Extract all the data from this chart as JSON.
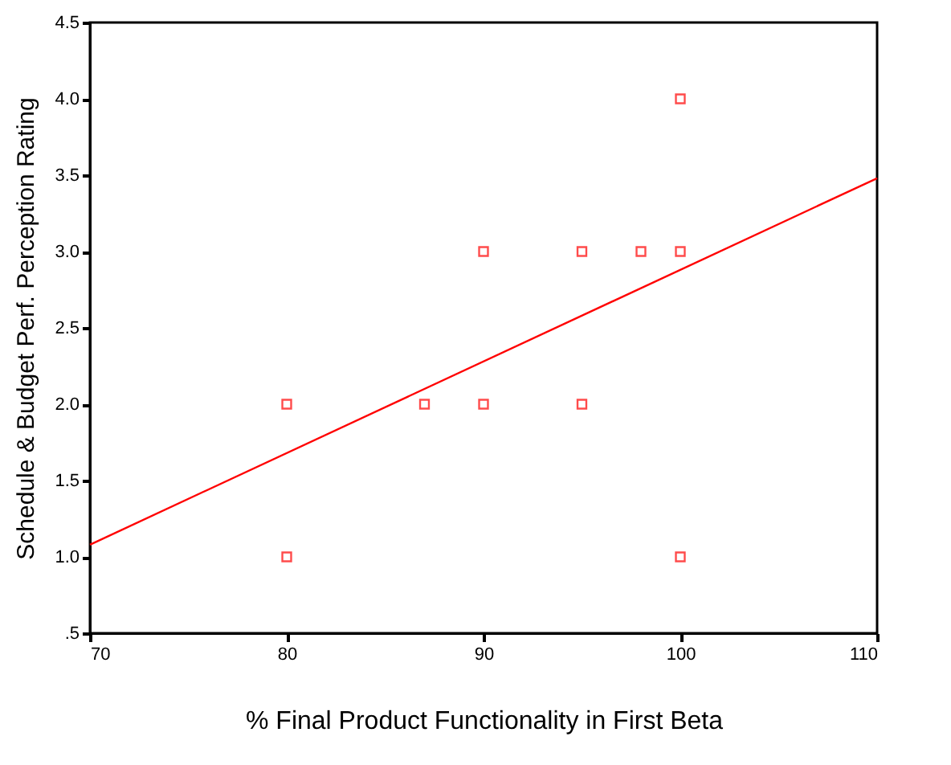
{
  "chart_data": {
    "type": "scatter",
    "xlabel": "% Final Product Functionality in First Beta",
    "ylabel": "Schedule & Budget Perf. Perception Rating",
    "series": [
      {
        "color": "#ff0000",
        "marker": "square",
        "x": [
          80,
          80,
          87,
          90,
          90,
          95,
          95,
          98,
          100,
          100,
          100
        ],
        "values": [
          2,
          1,
          2,
          3,
          2,
          3,
          2,
          3,
          3,
          4,
          1
        ]
      },
      {
        "type": "line",
        "color": "#ff0000",
        "marker": "none",
        "line_style": "solid",
        "x": [
          70,
          110
        ],
        "values": [
          1.08,
          3.48
        ]
      }
    ],
    "xlim": [
      70,
      110
    ],
    "xticks": [
      70,
      80,
      90,
      100,
      110
    ],
    "ylim": [
      0.5,
      4.5
    ],
    "yticks": [
      {
        "value": 0.5,
        "label": ".5"
      },
      {
        "value": 1,
        "label": "1.0"
      },
      {
        "value": 1.5,
        "label": "1.5"
      },
      {
        "value": 2,
        "label": "2.0"
      },
      {
        "value": 2.5,
        "label": "2.5"
      },
      {
        "value": 3,
        "label": "3.0"
      },
      {
        "value": 3.5,
        "label": "3.5"
      },
      {
        "value": 4,
        "label": "4.0"
      },
      {
        "value": 4.5,
        "label": "4.5"
      }
    ],
    "grid": false
  }
}
